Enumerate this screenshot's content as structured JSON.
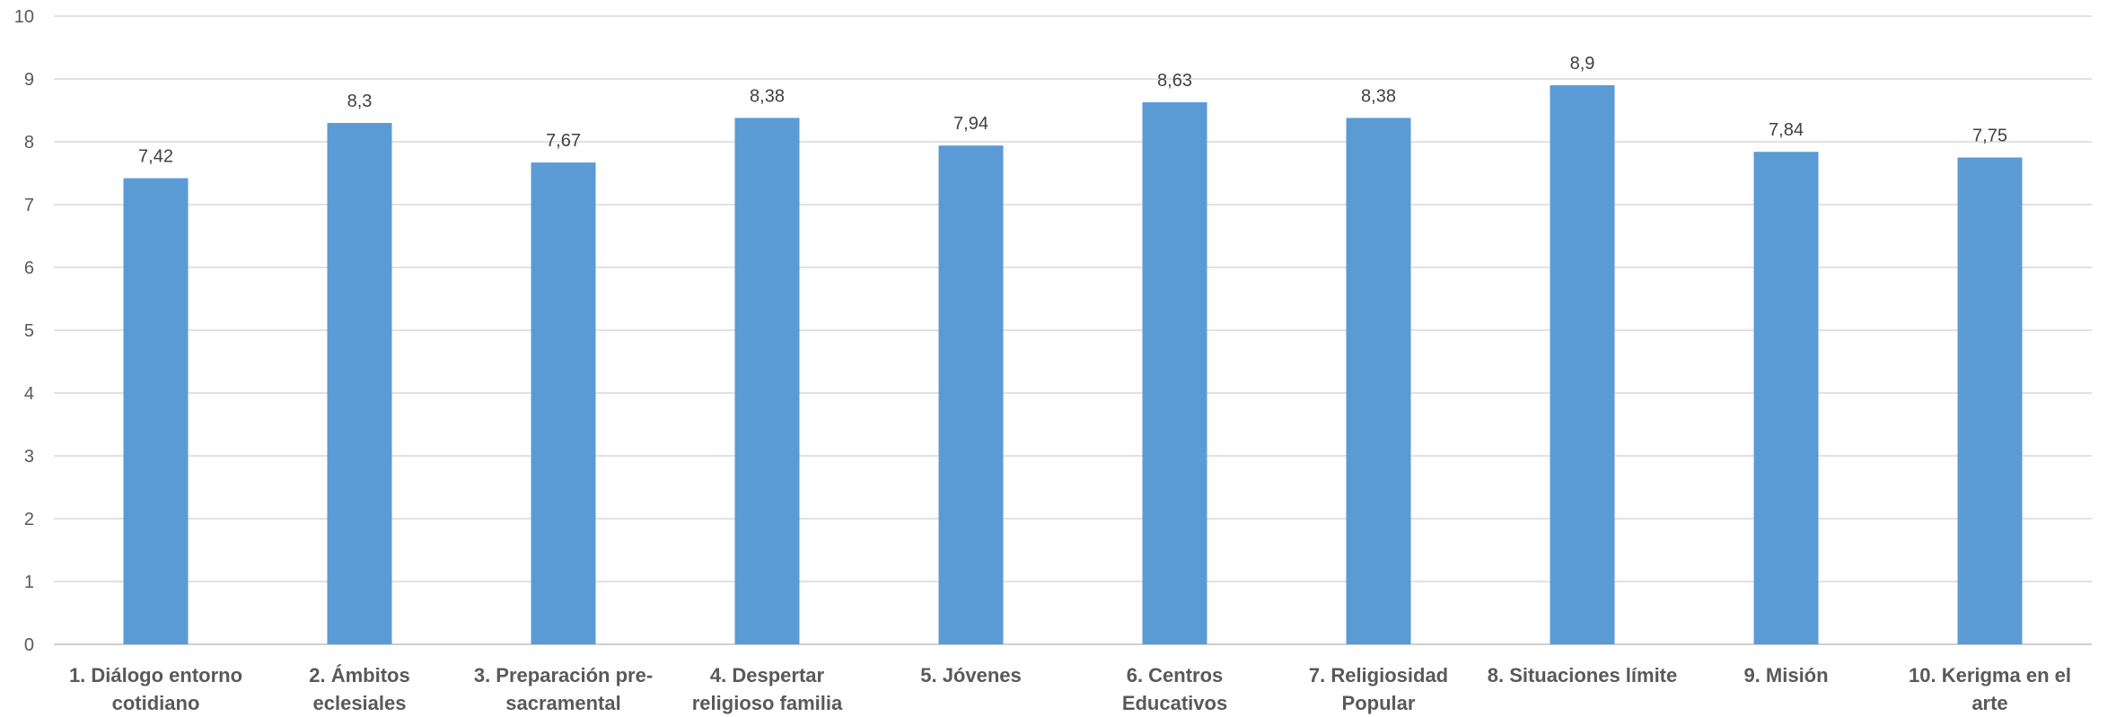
{
  "chart_data": {
    "type": "bar",
    "title": "",
    "xlabel": "",
    "ylabel": "",
    "ylim": [
      0,
      10
    ],
    "yticks": [
      0,
      1,
      2,
      3,
      4,
      5,
      6,
      7,
      8,
      9,
      10
    ],
    "grid": true,
    "bar_color": "#5b9bd5",
    "categories": [
      [
        "1. Diálogo entorno",
        "cotidiano"
      ],
      [
        "2. Ámbitos",
        "eclesiales"
      ],
      [
        "3. Preparación pre-",
        "sacramental"
      ],
      [
        "4. Despertar",
        "religioso familia"
      ],
      [
        "5. Jóvenes"
      ],
      [
        "6. Centros",
        "Educativos"
      ],
      [
        "7. Religiosidad",
        "Popular"
      ],
      [
        "8. Situaciones límite"
      ],
      [
        "9. Misión"
      ],
      [
        "10. Kerigma en el",
        "arte"
      ]
    ],
    "values": [
      7.42,
      8.3,
      7.67,
      8.38,
      7.94,
      8.63,
      8.38,
      8.9,
      7.84,
      7.75
    ],
    "value_labels": [
      "7,42",
      "8,3",
      "7,67",
      "8,38",
      "7,94",
      "8,63",
      "8,38",
      "8,9",
      "7,84",
      "7,75"
    ]
  }
}
